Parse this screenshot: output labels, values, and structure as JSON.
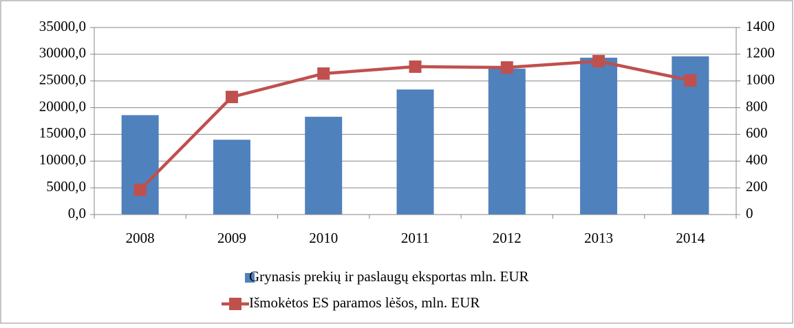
{
  "chart_data": {
    "type": "bar-line",
    "categories": [
      "2008",
      "2009",
      "2010",
      "2011",
      "2012",
      "2013",
      "2014"
    ],
    "series": [
      {
        "name": "Grynasis prekių ir paslaugų eksportas mln. EUR",
        "color": "#4f81bd",
        "type": "bar",
        "axis": "y",
        "values": [
          18600,
          14000,
          18300,
          23400,
          27300,
          29350,
          29600
        ]
      },
      {
        "name": "Išmokėtos ES paramos lėšos, mln. EUR",
        "color": "#c0504d",
        "type": "line",
        "axis": "y2",
        "values": [
          185,
          880,
          1055,
          1107,
          1101,
          1148,
          1004
        ]
      }
    ],
    "ylim": [
      0,
      35000
    ],
    "yticks": [
      {
        "value": 0,
        "label": "0,0"
      },
      {
        "value": 5000,
        "label": "5000,0"
      },
      {
        "value": 10000,
        "label": "10000,0"
      },
      {
        "value": 15000,
        "label": "15000,0"
      },
      {
        "value": 20000,
        "label": "20000,0"
      },
      {
        "value": 25000,
        "label": "25000,0"
      },
      {
        "value": 30000,
        "label": "30000,0"
      },
      {
        "value": 35000,
        "label": "35000,0"
      }
    ],
    "y2lim": [
      0,
      1400
    ],
    "y2ticks": [
      0,
      200,
      400,
      600,
      800,
      1000,
      1200,
      1400
    ],
    "grid": true,
    "legend": "bottom"
  }
}
